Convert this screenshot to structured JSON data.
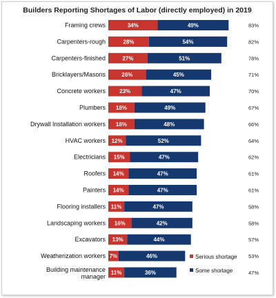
{
  "chart_data": {
    "type": "bar",
    "orientation": "horizontal",
    "stacked": true,
    "title": "Builders Reporting Shortages of Labor (directly employed) in 2019",
    "value_suffix": "%",
    "categories": [
      "Framing crews",
      "Carpenters-rough",
      "Carpenters-finished",
      "Bricklayers/Masons",
      "Concrete workers",
      "Plumbers",
      "Drywall Installation workers",
      "HVAC workers",
      "Electricians",
      "Roofers",
      "Painters",
      "Flooring installers",
      "Landscaping workers",
      "Excavators",
      "Weatherization workers",
      "Building maintenance manager"
    ],
    "series": [
      {
        "name": "Serious shortage",
        "color": "#c8342e",
        "values": [
          34,
          28,
          27,
          26,
          23,
          18,
          18,
          12,
          15,
          14,
          14,
          11,
          16,
          13,
          7,
          11
        ]
      },
      {
        "name": "Some shortage",
        "color": "#15386e",
        "values": [
          49,
          54,
          51,
          45,
          47,
          49,
          48,
          52,
          47,
          47,
          47,
          47,
          42,
          44,
          46,
          36
        ]
      }
    ],
    "totals": [
      83,
      82,
      78,
      71,
      70,
      67,
      66,
      64,
      62,
      61,
      61,
      58,
      58,
      57,
      53,
      47
    ],
    "xlim": [
      0,
      85
    ],
    "legend_position": "bottom-right",
    "grid": false
  }
}
